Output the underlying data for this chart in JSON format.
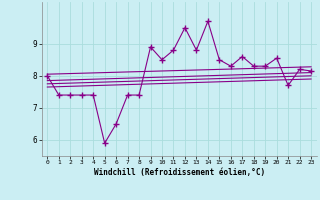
{
  "xlabel": "Windchill (Refroidissement éolien,°C)",
  "background_color": "#cbeef3",
  "line_color": "#880088",
  "x": [
    0,
    1,
    2,
    3,
    4,
    5,
    6,
    7,
    8,
    9,
    10,
    11,
    12,
    13,
    14,
    15,
    16,
    17,
    18,
    19,
    20,
    21,
    22,
    23
  ],
  "y_main": [
    8.0,
    7.4,
    7.4,
    7.4,
    7.4,
    5.9,
    6.5,
    7.4,
    7.4,
    8.9,
    8.5,
    8.8,
    9.5,
    8.8,
    9.7,
    8.5,
    8.3,
    8.6,
    8.3,
    8.3,
    8.55,
    7.7,
    8.2,
    8.15
  ],
  "trend_lines": [
    {
      "x0": 0,
      "y0": 8.05,
      "x1": 23,
      "y1": 8.28
    },
    {
      "x0": 0,
      "y0": 7.85,
      "x1": 23,
      "y1": 8.1
    },
    {
      "x0": 0,
      "y0": 7.75,
      "x1": 23,
      "y1": 8.0
    },
    {
      "x0": 0,
      "y0": 7.65,
      "x1": 23,
      "y1": 7.9
    }
  ],
  "ylim": [
    5.5,
    10.3
  ],
  "yticks": [
    6,
    7,
    8,
    9
  ],
  "xticks": [
    0,
    1,
    2,
    3,
    4,
    5,
    6,
    7,
    8,
    9,
    10,
    11,
    12,
    13,
    14,
    15,
    16,
    17,
    18,
    19,
    20,
    21,
    22,
    23
  ],
  "grid_color": "#aadddd",
  "marker": "+",
  "markersize": 4,
  "linewidth": 0.8
}
